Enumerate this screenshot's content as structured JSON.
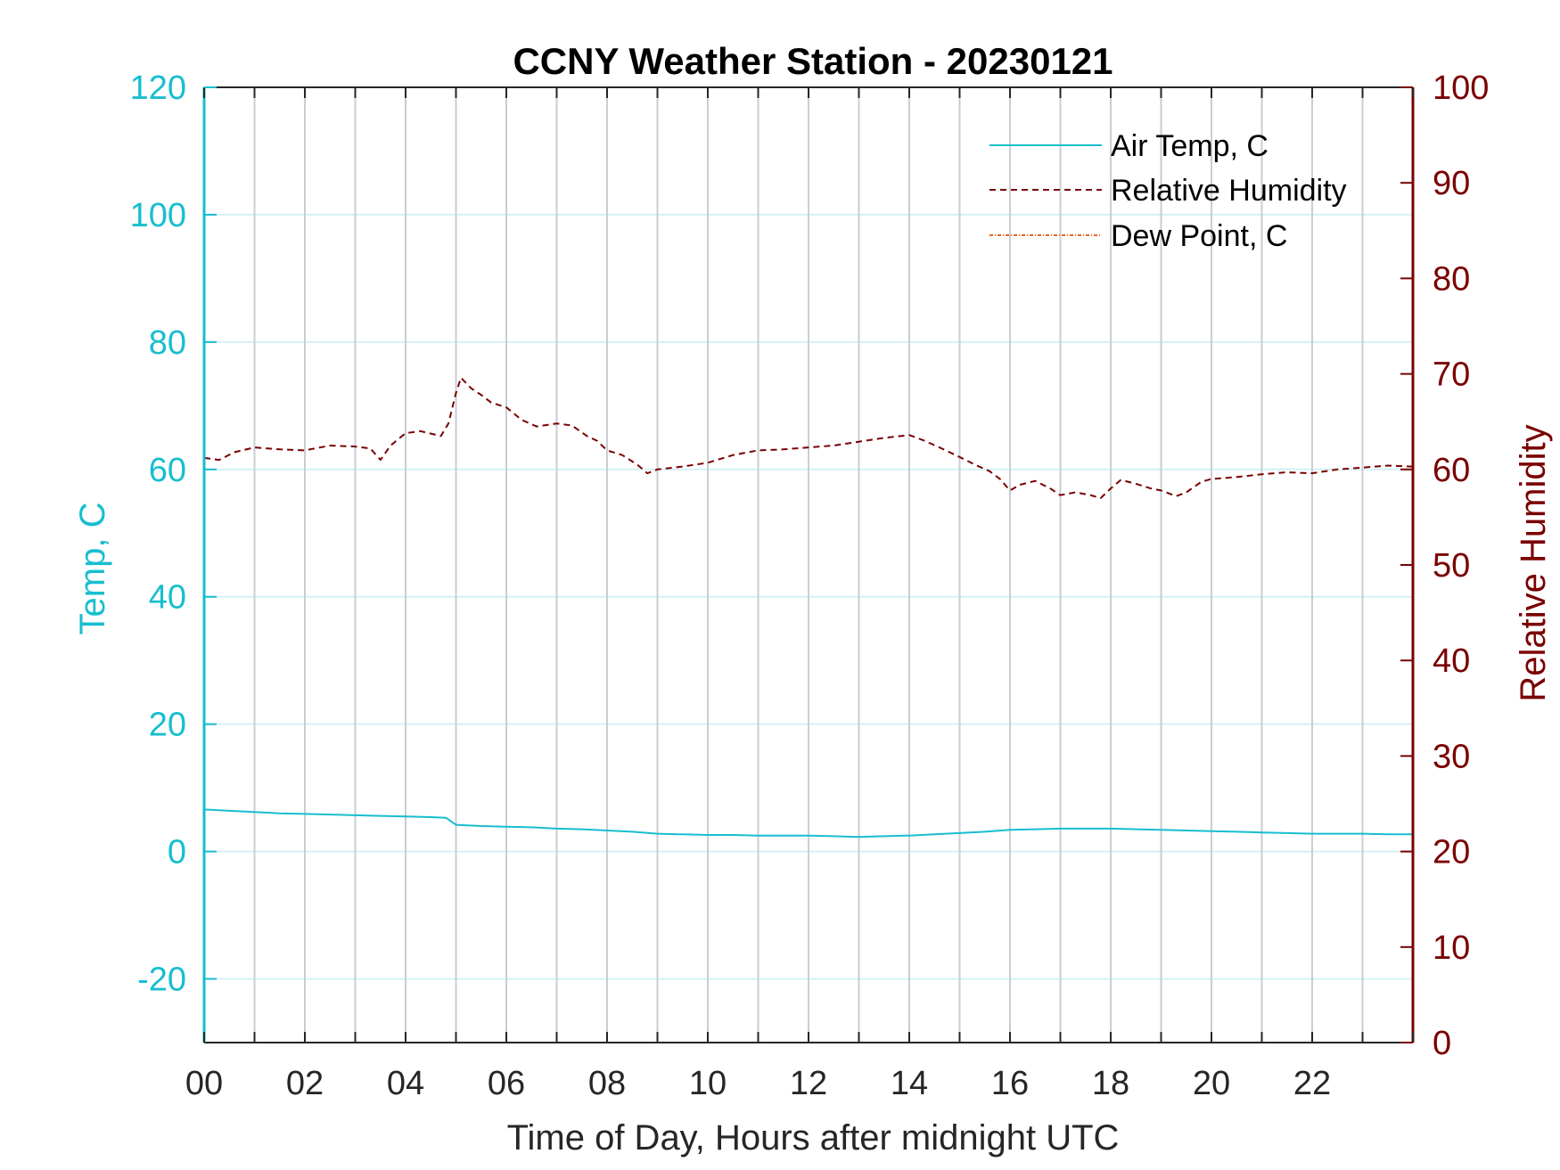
{
  "colors": {
    "air_temp": "#17becf",
    "relative_humidity": "#7a0000",
    "dew_point": "#e8661a",
    "grid": "#c8ced4",
    "hgrid": "#d5f0f5",
    "axis_dark": "#262626"
  },
  "chart_data": {
    "type": "line",
    "title": "CCNY Weather Station - 20230121",
    "xlabel": "Time of Day, Hours after midnight UTC",
    "ylabel_left": "Temp, C",
    "ylabel_right": "Relative Humidity",
    "xlim": [
      0,
      24
    ],
    "ylim_left": [
      -30,
      120
    ],
    "ylim_right": [
      0,
      100
    ],
    "x_ticks": [
      0,
      2,
      4,
      6,
      8,
      10,
      12,
      14,
      16,
      18,
      20,
      22
    ],
    "x_tick_labels": [
      "00",
      "02",
      "04",
      "06",
      "08",
      "10",
      "12",
      "14",
      "16",
      "18",
      "20",
      "22"
    ],
    "y_left_ticks": [
      -20,
      0,
      20,
      40,
      60,
      80,
      100,
      120
    ],
    "y_right_ticks": [
      0,
      10,
      20,
      30,
      40,
      50,
      60,
      70,
      80,
      90,
      100
    ],
    "grid": true,
    "legend_position": "top-right",
    "series": [
      {
        "name": "Air Temp, C",
        "axis": "left",
        "style": "solid",
        "x": [
          0,
          0.5,
          1,
          1.5,
          2,
          2.5,
          3,
          3.5,
          4,
          4.5,
          4.8,
          5.0,
          5.5,
          6,
          6.5,
          7,
          7.5,
          8,
          8.5,
          9,
          9.5,
          10,
          10.5,
          11,
          11.5,
          12,
          12.5,
          13,
          13.5,
          14,
          14.5,
          15,
          15.5,
          16,
          16.5,
          17,
          17.5,
          18,
          18.5,
          19,
          19.5,
          20,
          20.5,
          21,
          21.5,
          22,
          22.5,
          23,
          23.5,
          24
        ],
        "y": [
          6.6,
          6.4,
          6.2,
          6.0,
          5.9,
          5.8,
          5.7,
          5.6,
          5.5,
          5.4,
          5.3,
          4.2,
          4.0,
          3.9,
          3.8,
          3.6,
          3.5,
          3.3,
          3.1,
          2.8,
          2.7,
          2.6,
          2.6,
          2.5,
          2.5,
          2.5,
          2.4,
          2.3,
          2.4,
          2.5,
          2.7,
          2.9,
          3.1,
          3.4,
          3.5,
          3.6,
          3.6,
          3.6,
          3.5,
          3.4,
          3.3,
          3.2,
          3.1,
          3.0,
          2.9,
          2.8,
          2.8,
          2.8,
          2.7,
          2.7
        ]
      },
      {
        "name": "Relative Humidity",
        "axis": "right",
        "style": "dashed",
        "x": [
          0,
          0.3,
          0.6,
          1,
          1.5,
          2,
          2.5,
          3,
          3.3,
          3.5,
          3.7,
          4,
          4.3,
          4.7,
          4.85,
          5.0,
          5.1,
          5.3,
          5.5,
          5.7,
          6.0,
          6.3,
          6.6,
          7.0,
          7.3,
          7.6,
          7.8,
          8.0,
          8.3,
          8.6,
          8.8,
          9.0,
          9.5,
          10.0,
          10.5,
          11,
          11.5,
          12,
          12.5,
          13,
          13.5,
          14,
          14.3,
          14.6,
          15.0,
          15.3,
          15.6,
          15.8,
          16.0,
          16.2,
          16.5,
          16.8,
          17.0,
          17.3,
          17.6,
          17.8,
          18.0,
          18.2,
          18.5,
          18.8,
          19.0,
          19.3,
          19.5,
          19.8,
          20.0,
          20.5,
          21.0,
          21.5,
          22.0,
          22.5,
          23.0,
          23.5,
          24.0
        ],
        "y": [
          61.2,
          61.0,
          61.8,
          62.3,
          62.1,
          62.0,
          62.5,
          62.4,
          62.2,
          61.0,
          62.5,
          63.8,
          64.0,
          63.5,
          64.8,
          68.0,
          69.6,
          68.5,
          67.8,
          67.0,
          66.5,
          65.2,
          64.5,
          64.8,
          64.6,
          63.5,
          63.0,
          62.0,
          61.5,
          60.5,
          59.6,
          60.0,
          60.3,
          60.7,
          61.5,
          62.0,
          62.1,
          62.3,
          62.5,
          62.9,
          63.3,
          63.6,
          63.0,
          62.3,
          61.3,
          60.5,
          59.8,
          59.0,
          57.8,
          58.4,
          58.8,
          58.0,
          57.3,
          57.6,
          57.3,
          57.0,
          58.0,
          58.9,
          58.5,
          58.0,
          57.8,
          57.2,
          57.6,
          58.7,
          59.0,
          59.2,
          59.5,
          59.7,
          59.6,
          60.0,
          60.2,
          60.4,
          60.3
        ]
      },
      {
        "name": "Dew Point, C",
        "axis": "left",
        "style": "dash-dot",
        "x": [],
        "y": []
      }
    ]
  }
}
